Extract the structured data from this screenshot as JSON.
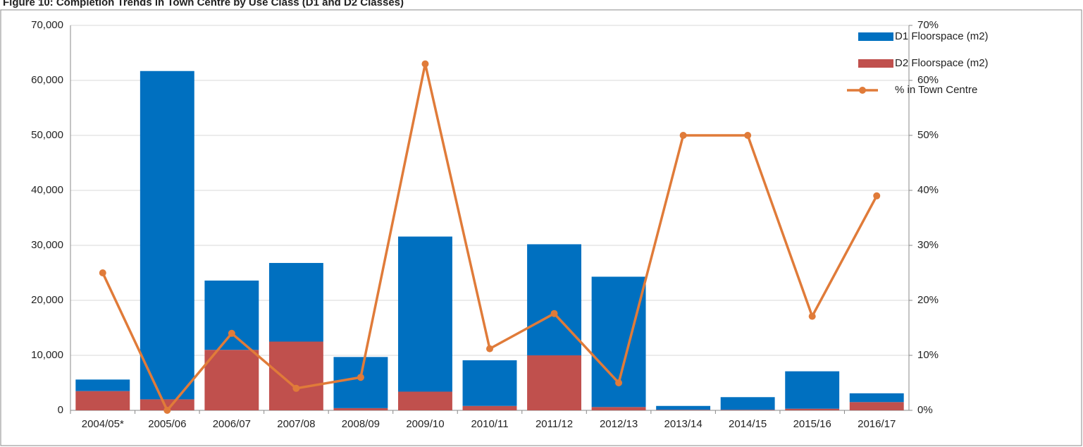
{
  "chart_data": {
    "type": "stacked_bar_line",
    "title": "Figure 10: Completion Trends in Town Centre by Use Class (D1 and D2 Classes)",
    "categories": [
      "2004/05*",
      "2005/06",
      "2006/07",
      "2007/08",
      "2008/09",
      "2009/10",
      "2010/11",
      "2011/12",
      "2012/13",
      "2013/14",
      "2014/15",
      "2015/16",
      "2016/17"
    ],
    "series": [
      {
        "name": "D1 Floorspace (m2)",
        "color": "#0070c0",
        "stack_order": 1,
        "values": [
          2100,
          59700,
          12600,
          14300,
          9300,
          28200,
          8300,
          20200,
          23700,
          700,
          2300,
          6800,
          1600
        ]
      },
      {
        "name": "D2 Floorspace (m2)",
        "color": "#c0504d",
        "stack_order": 0,
        "values": [
          3500,
          2000,
          11000,
          12500,
          400,
          3400,
          800,
          10000,
          600,
          100,
          100,
          300,
          1500
        ]
      },
      {
        "name": "% in Town Centre",
        "color": "#e07b39",
        "axis": "y2",
        "values": [
          25,
          0,
          14,
          4,
          6,
          63,
          11.2,
          17.6,
          5,
          50,
          50,
          17.1,
          39
        ]
      }
    ],
    "ylim": [
      0,
      70000
    ],
    "yticks": [
      0,
      {
        "value": 10000,
        "label": "10,000"
      },
      {
        "value": 20000,
        "label": "20,000"
      },
      {
        "value": 30000,
        "label": "30,000"
      },
      {
        "value": 40000,
        "label": "40,000"
      },
      {
        "value": 50000,
        "label": "50,000"
      },
      {
        "value": 60000,
        "label": "60,000"
      },
      {
        "value": 70000,
        "label": "70,000"
      }
    ],
    "y2lim": [
      0,
      70
    ],
    "y2ticks": [
      {
        "value": 0,
        "label": "0%"
      },
      {
        "value": 10,
        "label": "10%"
      },
      {
        "value": 20,
        "label": "20%"
      },
      {
        "value": 30,
        "label": "30%"
      },
      {
        "value": 40,
        "label": "40%"
      },
      {
        "value": 50,
        "label": "50%"
      },
      {
        "value": 60,
        "label": "60%"
      },
      {
        "value": 70,
        "label": "70%"
      }
    ],
    "grid": true,
    "legend": "top-right"
  }
}
